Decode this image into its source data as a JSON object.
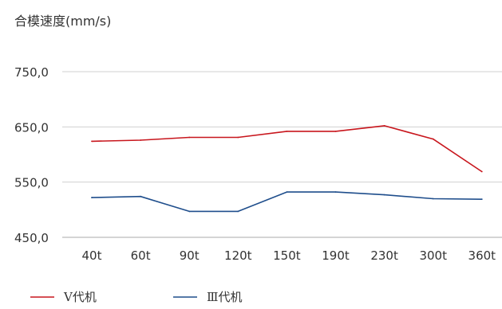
{
  "chart_data": {
    "type": "line",
    "title": "",
    "ylabel": "合模速度(mm/s)",
    "xlabel": "",
    "categories": [
      "40t",
      "60t",
      "90t",
      "120t",
      "150t",
      "190t",
      "230t",
      "300t",
      "360t"
    ],
    "yticks": [
      "750,0",
      "650,0",
      "550,0",
      "450,0"
    ],
    "ytick_values": [
      750,
      650,
      550,
      450
    ],
    "ylim": [
      450,
      750
    ],
    "grid": true,
    "legend_position": "bottom-left",
    "series": [
      {
        "name": "V代机",
        "color": "#c8161d",
        "values": [
          624,
          626,
          631,
          631,
          642,
          642,
          652,
          628,
          569
        ]
      },
      {
        "name": "Ⅲ代机",
        "color": "#1f4e8c",
        "values": [
          522,
          524,
          497,
          497,
          532,
          532,
          527,
          520,
          519
        ]
      }
    ]
  },
  "colors": {
    "grid": "#d0d0d0",
    "axis": "#aaaaaa"
  }
}
